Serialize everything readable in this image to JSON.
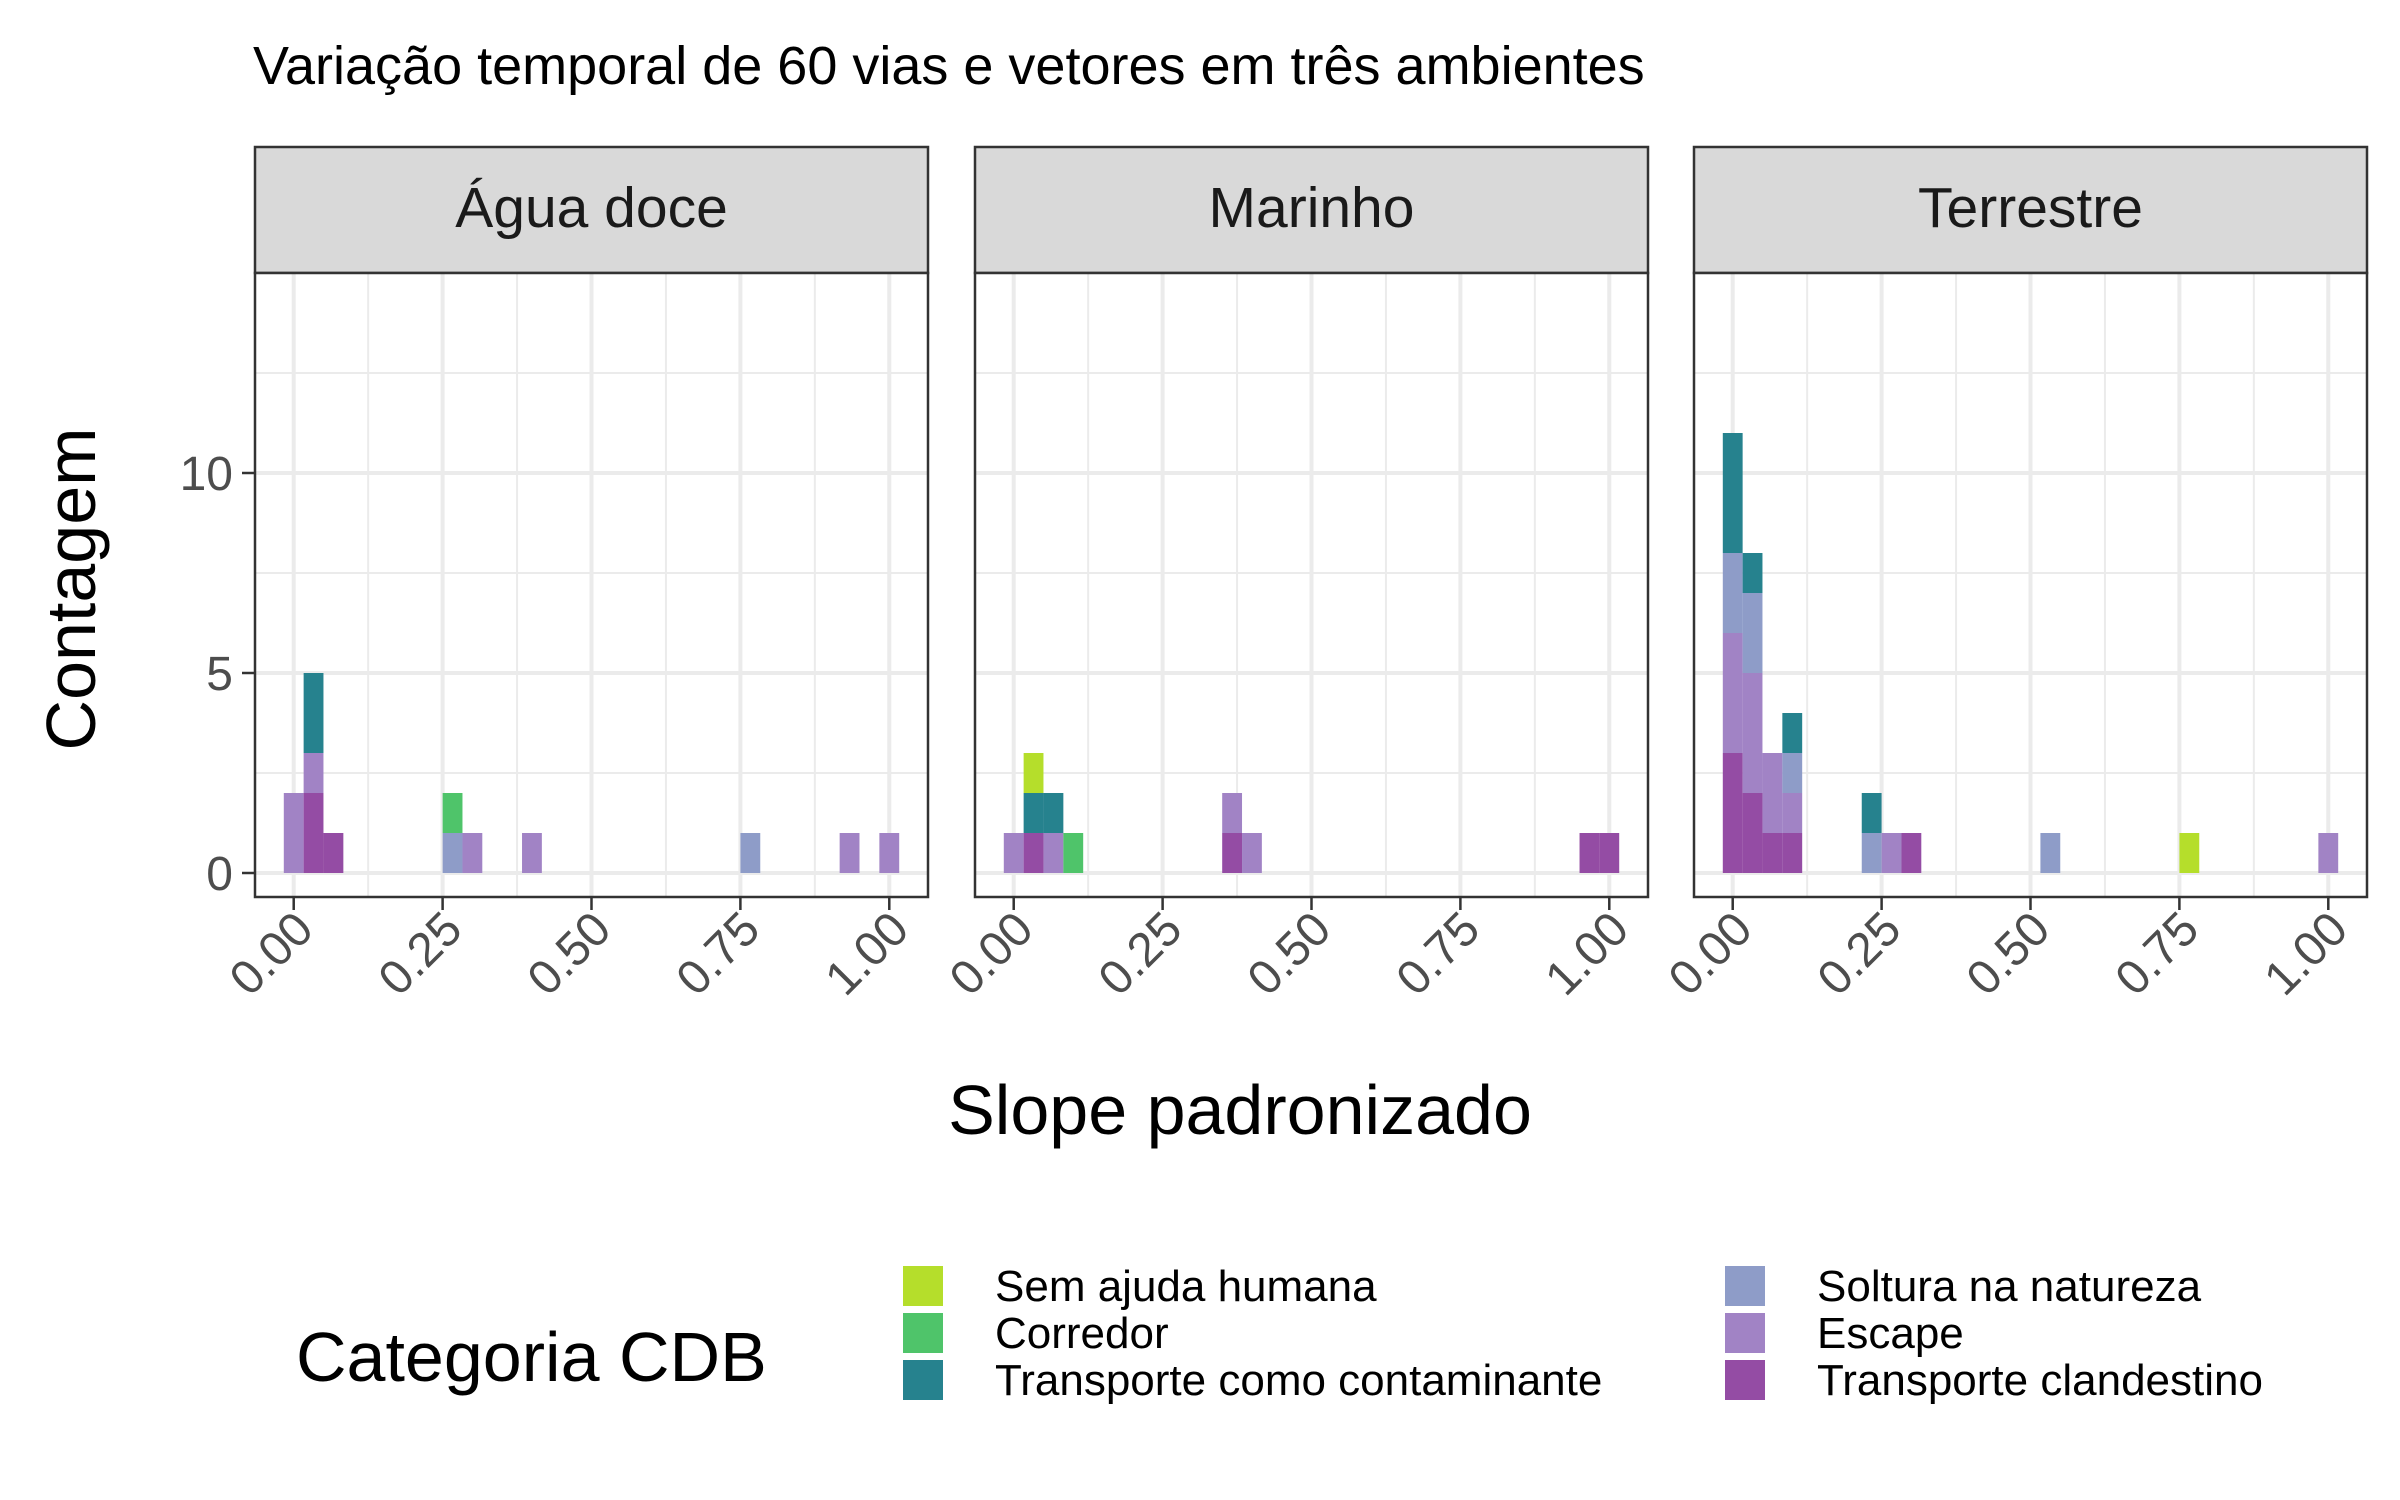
{
  "chart_data": {
    "type": "bar",
    "subtype": "stacked-histogram-facets",
    "title": "Variação temporal de 60 vias e vetores em três ambientes",
    "xlabel": "Slope padronizado",
    "ylabel": "Contagem",
    "xlim": [
      -0.065,
      1.065
    ],
    "ylim": [
      -0.6,
      15
    ],
    "x_ticks": [
      0,
      0.25,
      0.5,
      0.75,
      1
    ],
    "x_tick_labels": [
      "0.00",
      "0.25",
      "0.50",
      "0.75",
      "1.00"
    ],
    "y_ticks": [
      0,
      5,
      10
    ],
    "y_tick_labels": [
      "0",
      "5",
      "10"
    ],
    "bin_width": 0.0333,
    "grid": true,
    "legend": {
      "title": "Categoria CDB",
      "position": "bottom",
      "entries": [
        {
          "key": "sem",
          "label": "Sem ajuda humana",
          "color": "#B5DE2B"
        },
        {
          "key": "cor",
          "label": "Corredor",
          "color": "#4FC46A"
        },
        {
          "key": "tc",
          "label": "Transporte como contaminante",
          "color": "#26828E"
        },
        {
          "key": "sol",
          "label": "Soltura na natureza",
          "color": "#8E9CC8"
        },
        {
          "key": "esc",
          "label": "Escape",
          "color": "#A183C5"
        },
        {
          "key": "cla",
          "label": "Transporte clandestino",
          "color": "#944CA4"
        }
      ]
    },
    "stack_order_bottom_to_top": [
      "cla",
      "esc",
      "sol",
      "tc",
      "cor",
      "sem"
    ],
    "facets": [
      {
        "label": "Água doce",
        "bins": [
          {
            "x": 0.0,
            "esc": 2
          },
          {
            "x": 0.0333,
            "cla": 2,
            "esc": 1,
            "tc": 2
          },
          {
            "x": 0.0667,
            "cla": 1
          },
          {
            "x": 0.2667,
            "sol": 1,
            "cor": 1
          },
          {
            "x": 0.3,
            "esc": 1
          },
          {
            "x": 0.4,
            "esc": 1
          },
          {
            "x": 0.7667,
            "sol": 1
          },
          {
            "x": 0.9333,
            "esc": 1
          },
          {
            "x": 1.0,
            "esc": 1
          }
        ]
      },
      {
        "label": "Marinho",
        "bins": [
          {
            "x": 0.0,
            "esc": 1
          },
          {
            "x": 0.0333,
            "cla": 1,
            "tc": 1,
            "sem": 1
          },
          {
            "x": 0.0667,
            "esc": 1,
            "tc": 1
          },
          {
            "x": 0.1,
            "cor": 1
          },
          {
            "x": 0.3667,
            "cla": 1,
            "esc": 1
          },
          {
            "x": 0.4,
            "esc": 1
          },
          {
            "x": 0.9667,
            "cla": 1
          },
          {
            "x": 1.0,
            "cla": 1
          }
        ]
      },
      {
        "label": "Terrestre",
        "bins": [
          {
            "x": 0.0,
            "cla": 3,
            "esc": 3,
            "sol": 2,
            "tc": 3
          },
          {
            "x": 0.0333,
            "cla": 2,
            "esc": 3,
            "sol": 2,
            "tc": 1
          },
          {
            "x": 0.0667,
            "cla": 1,
            "esc": 2
          },
          {
            "x": 0.1,
            "cla": 1,
            "esc": 1,
            "sol": 1,
            "tc": 1
          },
          {
            "x": 0.2333,
            "sol": 1,
            "tc": 1
          },
          {
            "x": 0.2667,
            "esc": 1
          },
          {
            "x": 0.3,
            "cla": 1
          },
          {
            "x": 0.5333,
            "sol": 1
          },
          {
            "x": 0.7667,
            "sem": 1
          },
          {
            "x": 1.0,
            "esc": 1
          }
        ]
      }
    ]
  }
}
